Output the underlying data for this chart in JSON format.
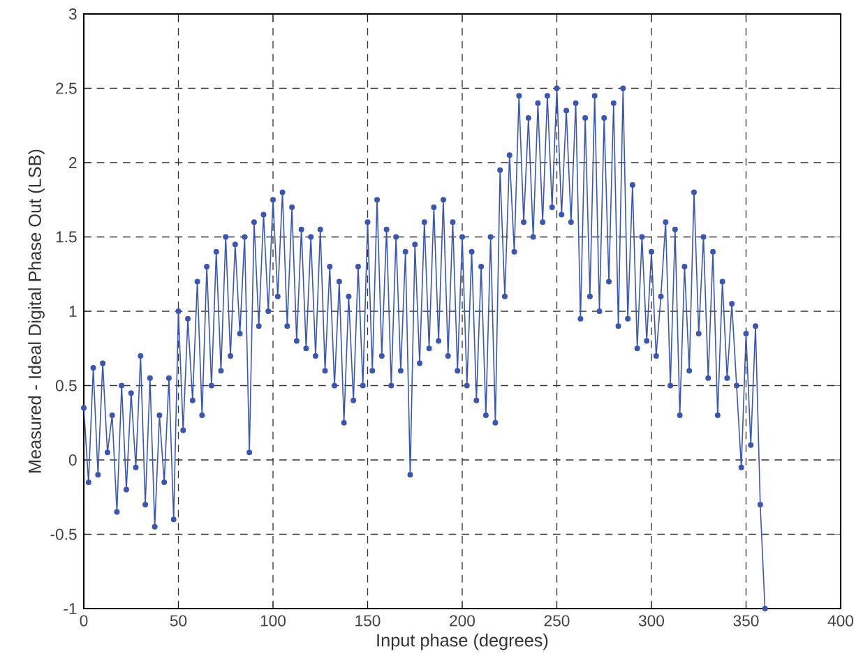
{
  "chart_data": {
    "type": "line",
    "xlabel": "Input phase (degrees)",
    "ylabel": "Measured - Ideal Digital Phase Out (LSB)",
    "xlim": [
      0,
      400
    ],
    "ylim": [
      -1,
      3
    ],
    "xticks": [
      0,
      50,
      100,
      150,
      200,
      250,
      300,
      350,
      400
    ],
    "yticks": [
      -1,
      -0.5,
      0,
      0.5,
      1,
      1.5,
      2,
      2.5,
      3
    ],
    "grid": true,
    "marker": "circle",
    "line_style": "solid",
    "series": [
      {
        "color": "#3a56b5",
        "x": [
          0,
          2.5,
          5,
          7.5,
          10,
          12.5,
          15,
          17.5,
          20,
          22.5,
          25,
          27.5,
          30,
          32.5,
          35,
          37.5,
          40,
          42.5,
          45,
          47.5,
          50,
          52.5,
          55,
          57.5,
          60,
          62.5,
          65,
          67.5,
          70,
          72.5,
          75,
          77.5,
          80,
          82.5,
          85,
          87.5,
          90,
          92.5,
          95,
          97.5,
          100,
          102.5,
          105,
          107.5,
          110,
          112.5,
          115,
          117.5,
          120,
          122.5,
          125,
          127.5,
          130,
          132.5,
          135,
          137.5,
          140,
          142.5,
          145,
          147.5,
          150,
          152.5,
          155,
          157.5,
          160,
          162.5,
          165,
          167.5,
          170,
          172.5,
          175,
          177.5,
          180,
          182.5,
          185,
          187.5,
          190,
          192.5,
          195,
          197.5,
          200,
          202.5,
          205,
          207.5,
          210,
          212.5,
          215,
          217.5,
          220,
          222.5,
          225,
          227.5,
          230,
          232.5,
          235,
          237.5,
          240,
          242.5,
          245,
          247.5,
          250,
          252.5,
          255,
          257.5,
          260,
          262.5,
          265,
          267.5,
          270,
          272.5,
          275,
          277.5,
          280,
          282.5,
          285,
          287.5,
          290,
          292.5,
          295,
          297.5,
          300,
          302.5,
          305,
          307.5,
          310,
          312.5,
          315,
          317.5,
          320,
          322.5,
          325,
          327.5,
          330,
          332.5,
          335,
          337.5,
          340,
          342.5,
          345,
          347.5,
          350,
          352.5,
          355,
          357.5,
          360
        ],
        "values": [
          0.35,
          -0.15,
          0.62,
          -0.1,
          0.65,
          0.05,
          0.3,
          -0.35,
          0.5,
          -0.2,
          0.45,
          -0.05,
          0.7,
          -0.3,
          0.55,
          -0.45,
          0.3,
          -0.15,
          0.55,
          -0.4,
          1.0,
          0.2,
          0.95,
          0.4,
          1.2,
          0.3,
          1.3,
          0.5,
          1.4,
          0.6,
          1.5,
          0.7,
          1.45,
          0.85,
          1.5,
          0.05,
          1.6,
          0.9,
          1.65,
          1.0,
          1.75,
          1.1,
          1.8,
          0.9,
          1.7,
          0.8,
          1.55,
          0.75,
          1.5,
          0.7,
          1.55,
          0.6,
          1.3,
          0.5,
          1.2,
          0.25,
          1.1,
          0.4,
          1.3,
          0.5,
          1.6,
          0.6,
          1.75,
          0.7,
          1.55,
          0.5,
          1.5,
          0.6,
          1.4,
          -0.1,
          1.45,
          0.65,
          1.6,
          0.75,
          1.7,
          0.8,
          1.75,
          0.7,
          1.6,
          0.6,
          1.5,
          0.5,
          1.4,
          0.4,
          1.3,
          0.3,
          1.5,
          0.25,
          1.95,
          1.1,
          2.05,
          1.4,
          2.45,
          1.6,
          2.3,
          1.5,
          2.4,
          1.6,
          2.45,
          1.7,
          2.5,
          1.65,
          2.35,
          1.6,
          2.4,
          0.95,
          2.3,
          1.1,
          2.45,
          1.0,
          2.3,
          1.2,
          2.4,
          0.9,
          2.5,
          0.95,
          1.85,
          0.75,
          1.5,
          0.8,
          1.4,
          0.7,
          1.1,
          1.6,
          0.5,
          1.55,
          0.3,
          1.3,
          0.6,
          1.8,
          0.85,
          1.5,
          0.55,
          1.4,
          0.3,
          1.2,
          0.55,
          1.05,
          0.5,
          -0.05,
          0.85,
          0.1,
          0.9,
          -0.3,
          -1
        ]
      }
    ]
  }
}
